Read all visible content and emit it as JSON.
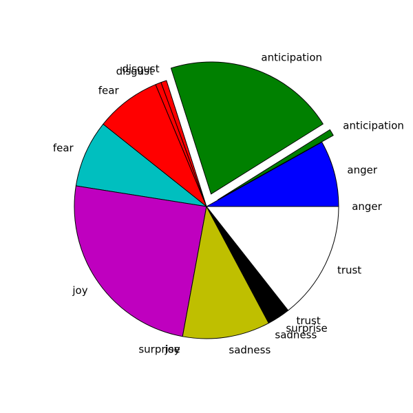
{
  "chart_data": {
    "type": "pie",
    "title": "",
    "start_angle_deg": 0,
    "direction": "counterclockwise",
    "slices": [
      {
        "label": "anger",
        "value": 8.1,
        "color": "#0000ff",
        "exploded": false
      },
      {
        "label": "anticipation",
        "value": 0.8,
        "color": "#008000",
        "exploded": true
      },
      {
        "label": "anticipation",
        "value": 21.0,
        "color": "#008000",
        "exploded": true
      },
      {
        "label": "disgust",
        "value": 0.7,
        "color": "#ff0000",
        "exploded": false
      },
      {
        "label": "disgust",
        "value": 0.7,
        "color": "#ff0000",
        "exploded": false
      },
      {
        "label": "fear",
        "value": 8.0,
        "color": "#ff0000",
        "exploded": false
      },
      {
        "label": "fear",
        "value": 8.2,
        "color": "#00bfbf",
        "exploded": false
      },
      {
        "label": "joy",
        "value": 24.6,
        "color": "#bf00bf",
        "exploded": false
      },
      {
        "label": "joy",
        "value": 0,
        "color": "#bf00bf",
        "exploded": false
      },
      {
        "label": "surprise",
        "value": 0,
        "color": "#bf00bf",
        "exploded": false
      },
      {
        "label": "sadness",
        "value": 10.7,
        "color": "#bfbf00",
        "exploded": false
      },
      {
        "label": "sadness",
        "value": 0,
        "color": "#bfbf00",
        "exploded": false
      },
      {
        "label": "surprise",
        "value": 2.8,
        "color": "#000000",
        "exploded": false
      },
      {
        "label": "trust",
        "value": 0,
        "color": "#000000",
        "exploded": false
      },
      {
        "label": "trust",
        "value": 14.4,
        "color": "#ffffff",
        "exploded": false
      },
      {
        "label": "anger",
        "value": 0,
        "color": "#ffffff",
        "exploded": false
      }
    ]
  }
}
